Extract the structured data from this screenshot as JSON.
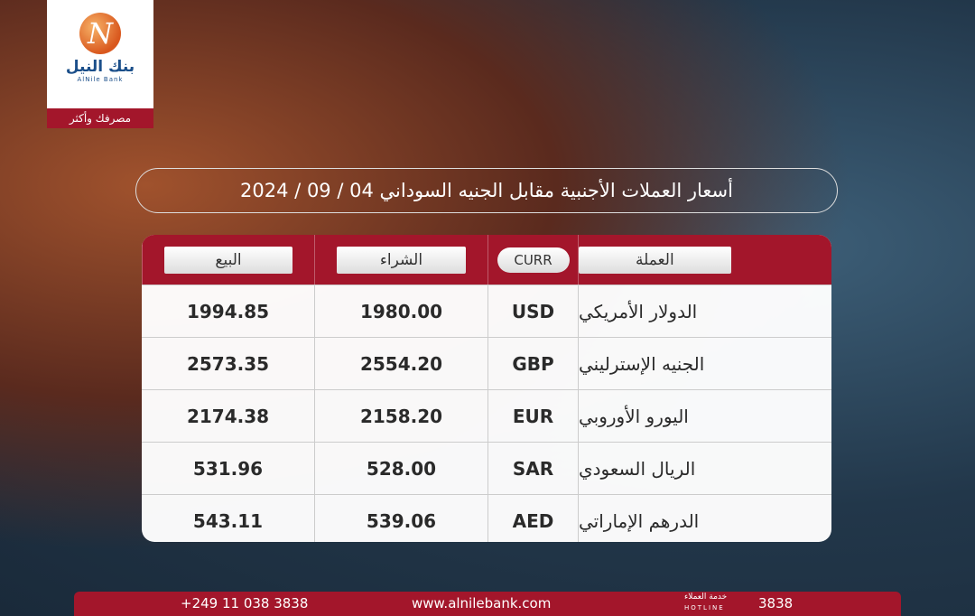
{
  "logo": {
    "bank_name": "بنك النيل",
    "bank_name_latin": "AlNile Bank",
    "tagline": "مصرفك وأكثر"
  },
  "title": "أسعار العملات الأجنبية مقابل الجنيه السوداني 04 / 09 / 2024",
  "table": {
    "headers": [
      "العملة",
      "CURR",
      "الشراء",
      "البيع"
    ],
    "rows": [
      [
        "الدولار الأمريكي",
        "USD",
        "1980.00",
        "1994.85"
      ],
      [
        "الجنيه الإسترليني",
        "GBP",
        "2554.20",
        "2573.35"
      ],
      [
        "اليورو الأوروبي",
        "EUR",
        "2158.20",
        "2174.38"
      ],
      [
        "الريال السعودي",
        "SAR",
        "528.00",
        "531.96"
      ],
      [
        "الدرهم الإماراتي",
        "AED",
        "539.06",
        "543.11"
      ]
    ]
  },
  "footer": {
    "phone": "+249 11 038 3838",
    "website": "www.alnilebank.com",
    "service_label": "خدمة العملاء",
    "hotline_label": "HOTLINE",
    "hotline": "3838"
  }
}
